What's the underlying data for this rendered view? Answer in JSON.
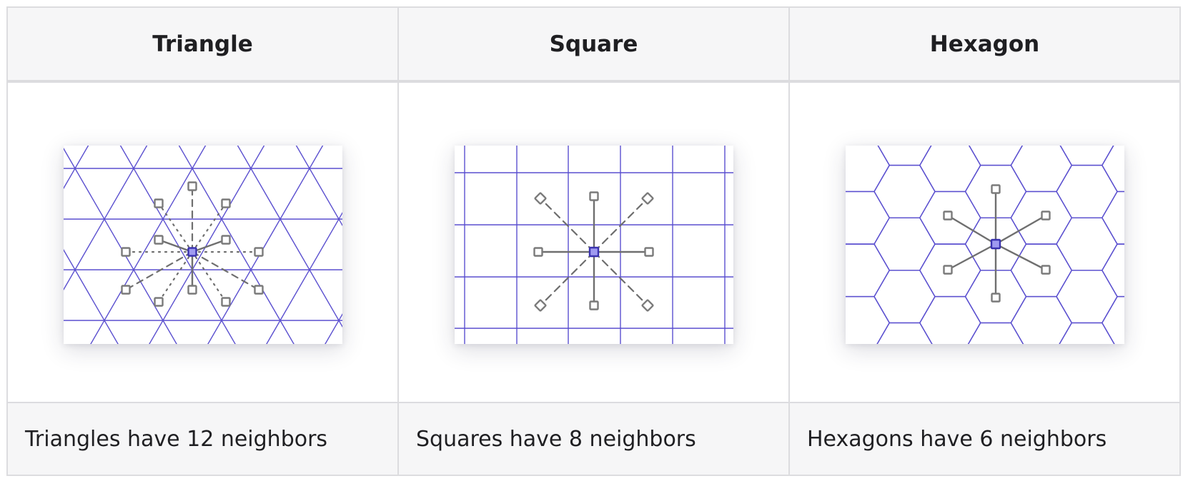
{
  "columns": [
    {
      "header": "Triangle",
      "caption": "Triangles have 12 neighbors",
      "diagram": "triangle-grid",
      "neighbor_count": 12
    },
    {
      "header": "Square",
      "caption": "Squares have 8 neighbors",
      "diagram": "square-grid",
      "neighbor_count": 8
    },
    {
      "header": "Hexagon",
      "caption": "Hexagons have 6 neighbors",
      "diagram": "hexagon-grid",
      "neighbor_count": 6
    }
  ],
  "colors": {
    "grid_line": "#5a4fcf",
    "center_fill": "#9f9af0",
    "center_stroke": "#3a32b0",
    "neighbor_stroke": "#7a7a7a",
    "connector": "#6f6f6f",
    "header_bg": "#f6f6f7",
    "border": "#dcdcdf",
    "text": "#1f1f22"
  }
}
